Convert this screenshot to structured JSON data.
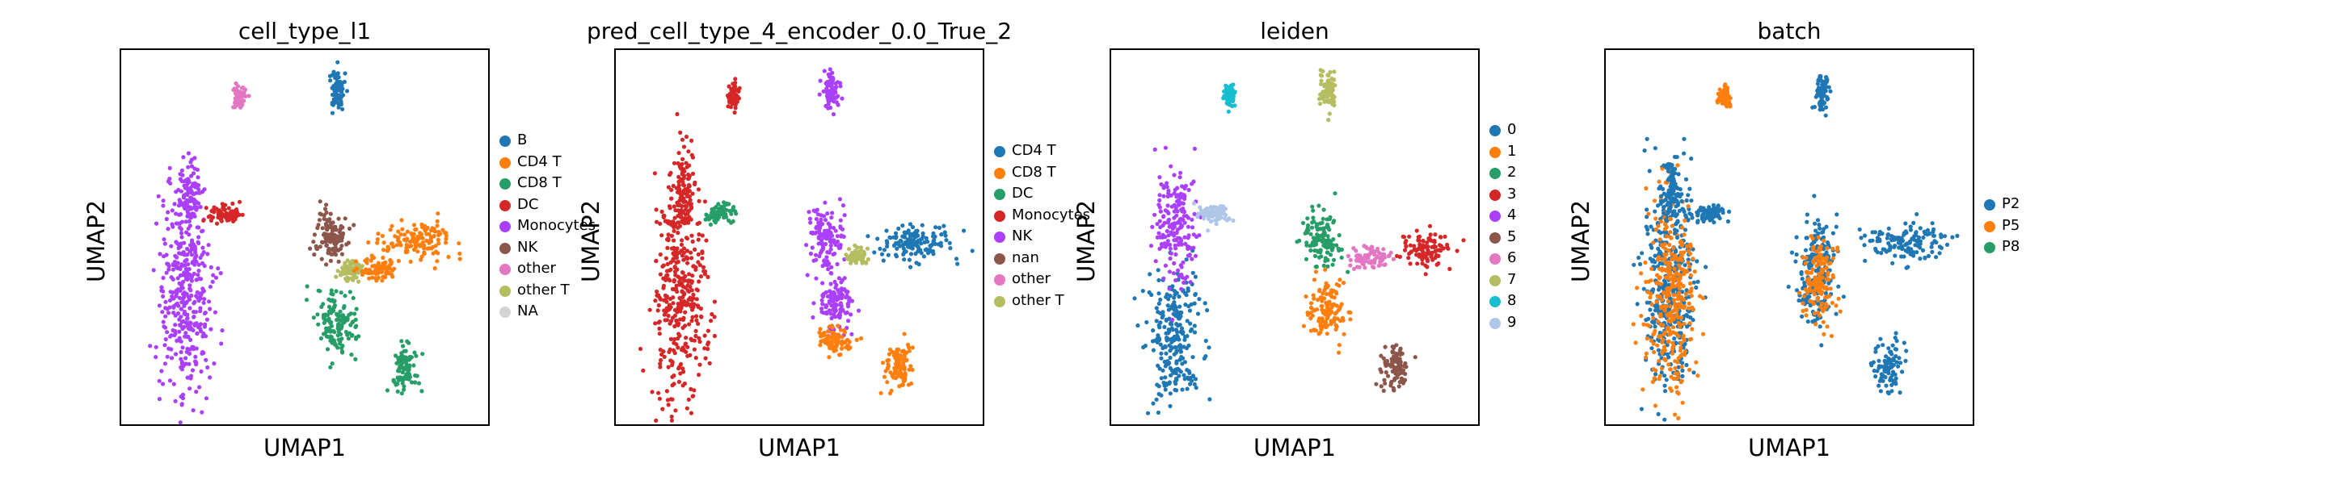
{
  "chart_data": [
    {
      "type": "scatter",
      "title": "cell_type_l1",
      "xlabel": "UMAP1",
      "ylabel": "UMAP2",
      "grid": false,
      "legend_position": "right",
      "legend": [
        {
          "label": "B",
          "color": "#1f77b4"
        },
        {
          "label": "CD4 T",
          "color": "#ff7f0e"
        },
        {
          "label": "CD8 T",
          "color": "#279e68"
        },
        {
          "label": "DC",
          "color": "#d62728"
        },
        {
          "label": "Monocytes",
          "color": "#aa40fc"
        },
        {
          "label": "NK",
          "color": "#8c564b"
        },
        {
          "label": "other",
          "color": "#e377c2"
        },
        {
          "label": "other T",
          "color": "#b5bd61"
        },
        {
          "label": "NA",
          "color": "#d3d3d3"
        }
      ],
      "clusters": [
        {
          "color": "#aa40fc",
          "x": -6.0,
          "y": -1.5,
          "sx": 1.1,
          "sy": 4.2
        },
        {
          "color": "#aa40fc",
          "x": -5.8,
          "y": 2.9,
          "sx": 0.5,
          "sy": 1.2
        },
        {
          "color": "#d62728",
          "x": -4.2,
          "y": 2.0,
          "sx": 0.7,
          "sy": 0.35
        },
        {
          "color": "#e377c2",
          "x": -3.5,
          "y": 7.0,
          "sx": 0.25,
          "sy": 0.45
        },
        {
          "color": "#1f77b4",
          "x": 1.0,
          "y": 7.2,
          "sx": 0.35,
          "sy": 0.75
        },
        {
          "color": "#8c564b",
          "x": 0.7,
          "y": 1.0,
          "sx": 0.65,
          "sy": 1.1
        },
        {
          "color": "#b5bd61",
          "x": 1.6,
          "y": -0.4,
          "sx": 0.45,
          "sy": 0.45
        },
        {
          "color": "#279e68",
          "x": 1.0,
          "y": -2.6,
          "sx": 0.9,
          "sy": 1.2
        },
        {
          "color": "#ff7f0e",
          "x": 4.8,
          "y": 0.8,
          "sx": 1.6,
          "sy": 0.7
        },
        {
          "color": "#ff7f0e",
          "x": 2.8,
          "y": -0.3,
          "sx": 0.8,
          "sy": 0.4
        },
        {
          "color": "#279e68",
          "x": 4.1,
          "y": -4.5,
          "sx": 0.55,
          "sy": 0.9
        }
      ]
    },
    {
      "type": "scatter",
      "title": "pred_cell_type_4_encoder_0.0_True_2",
      "xlabel": "UMAP1",
      "ylabel": "UMAP2",
      "grid": false,
      "legend_position": "right",
      "legend": [
        {
          "label": "CD4 T",
          "color": "#1f77b4"
        },
        {
          "label": "CD8 T",
          "color": "#ff7f0e"
        },
        {
          "label": "DC",
          "color": "#279e68"
        },
        {
          "label": "Monocytes",
          "color": "#d62728"
        },
        {
          "label": "NK",
          "color": "#aa40fc"
        },
        {
          "label": "nan",
          "color": "#8c564b"
        },
        {
          "label": "other",
          "color": "#e377c2"
        },
        {
          "label": "other T",
          "color": "#b5bd61"
        }
      ],
      "clusters": [
        {
          "color": "#d62728",
          "x": -6.0,
          "y": -1.5,
          "sx": 1.1,
          "sy": 4.2
        },
        {
          "color": "#d62728",
          "x": -5.8,
          "y": 2.9,
          "sx": 0.5,
          "sy": 1.2
        },
        {
          "color": "#279e68",
          "x": -4.2,
          "y": 2.0,
          "sx": 0.7,
          "sy": 0.35
        },
        {
          "color": "#d62728",
          "x": -3.5,
          "y": 7.0,
          "sx": 0.25,
          "sy": 0.45
        },
        {
          "color": "#aa40fc",
          "x": 1.0,
          "y": 7.2,
          "sx": 0.35,
          "sy": 0.75
        },
        {
          "color": "#aa40fc",
          "x": 0.7,
          "y": 1.0,
          "sx": 0.75,
          "sy": 1.2
        },
        {
          "color": "#aa40fc",
          "x": 1.2,
          "y": -1.8,
          "sx": 0.8,
          "sy": 1.0
        },
        {
          "color": "#b5bd61",
          "x": 2.2,
          "y": 0.2,
          "sx": 0.4,
          "sy": 0.35
        },
        {
          "color": "#1f77b4",
          "x": 4.8,
          "y": 0.8,
          "sx": 1.6,
          "sy": 0.7
        },
        {
          "color": "#ff7f0e",
          "x": 1.1,
          "y": -3.4,
          "sx": 0.7,
          "sy": 0.5
        },
        {
          "color": "#ff7f0e",
          "x": 4.1,
          "y": -4.5,
          "sx": 0.55,
          "sy": 0.9
        }
      ]
    },
    {
      "type": "scatter",
      "title": "leiden",
      "xlabel": "UMAP1",
      "ylabel": "UMAP2",
      "grid": false,
      "legend_position": "right",
      "legend": [
        {
          "label": "0",
          "color": "#1f77b4"
        },
        {
          "label": "1",
          "color": "#ff7f0e"
        },
        {
          "label": "2",
          "color": "#279e68"
        },
        {
          "label": "3",
          "color": "#d62728"
        },
        {
          "label": "4",
          "color": "#aa40fc"
        },
        {
          "label": "5",
          "color": "#8c564b"
        },
        {
          "label": "6",
          "color": "#e377c2"
        },
        {
          "label": "7",
          "color": "#b5bd61"
        },
        {
          "label": "8",
          "color": "#17becf"
        },
        {
          "label": "9",
          "color": "#aec7e8"
        }
      ],
      "clusters": [
        {
          "color": "#1f77b4",
          "x": -6.0,
          "y": -3.2,
          "sx": 1.1,
          "sy": 2.5
        },
        {
          "color": "#aa40fc",
          "x": -6.0,
          "y": 1.5,
          "sx": 0.8,
          "sy": 2.2
        },
        {
          "color": "#aec7e8",
          "x": -4.2,
          "y": 2.0,
          "sx": 0.7,
          "sy": 0.35
        },
        {
          "color": "#17becf",
          "x": -3.5,
          "y": 7.0,
          "sx": 0.25,
          "sy": 0.45
        },
        {
          "color": "#b5bd61",
          "x": 1.0,
          "y": 7.2,
          "sx": 0.35,
          "sy": 0.75
        },
        {
          "color": "#279e68",
          "x": 0.7,
          "y": 1.0,
          "sx": 0.75,
          "sy": 1.1
        },
        {
          "color": "#ff7f0e",
          "x": 1.0,
          "y": -2.2,
          "sx": 0.8,
          "sy": 1.2
        },
        {
          "color": "#e377c2",
          "x": 2.9,
          "y": 0.1,
          "sx": 0.9,
          "sy": 0.4
        },
        {
          "color": "#d62728",
          "x": 5.5,
          "y": 0.5,
          "sx": 1.0,
          "sy": 0.7
        },
        {
          "color": "#8c564b",
          "x": 4.1,
          "y": -4.5,
          "sx": 0.55,
          "sy": 0.9
        }
      ]
    },
    {
      "type": "scatter",
      "title": "batch",
      "xlabel": "UMAP1",
      "ylabel": "UMAP2",
      "grid": false,
      "legend_position": "right",
      "legend": [
        {
          "label": "P2",
          "color": "#1f77b4"
        },
        {
          "label": "P5",
          "color": "#ff7f0e"
        },
        {
          "label": "P8",
          "color": "#279e68"
        }
      ],
      "clusters": [
        {
          "color": "#1f77b4",
          "x": -6.0,
          "y": -1.5,
          "sx": 1.1,
          "sy": 4.2
        },
        {
          "color": "#ff7f0e",
          "x": -6.0,
          "y": -1.5,
          "sx": 1.0,
          "sy": 4.0
        },
        {
          "color": "#1f77b4",
          "x": -5.8,
          "y": 2.9,
          "sx": 0.5,
          "sy": 1.2
        },
        {
          "color": "#1f77b4",
          "x": -4.2,
          "y": 2.0,
          "sx": 0.7,
          "sy": 0.35
        },
        {
          "color": "#ff7f0e",
          "x": -3.5,
          "y": 7.0,
          "sx": 0.25,
          "sy": 0.45
        },
        {
          "color": "#1f77b4",
          "x": 1.0,
          "y": 7.2,
          "sx": 0.35,
          "sy": 0.75
        },
        {
          "color": "#1f77b4",
          "x": 0.8,
          "y": -0.5,
          "sx": 0.85,
          "sy": 2.0
        },
        {
          "color": "#ff7f0e",
          "x": 0.9,
          "y": -0.8,
          "sx": 0.7,
          "sy": 1.6
        },
        {
          "color": "#1f77b4",
          "x": 4.8,
          "y": 0.8,
          "sx": 1.6,
          "sy": 0.7
        },
        {
          "color": "#1f77b4",
          "x": 4.1,
          "y": -4.5,
          "sx": 0.55,
          "sy": 0.9
        }
      ]
    }
  ]
}
